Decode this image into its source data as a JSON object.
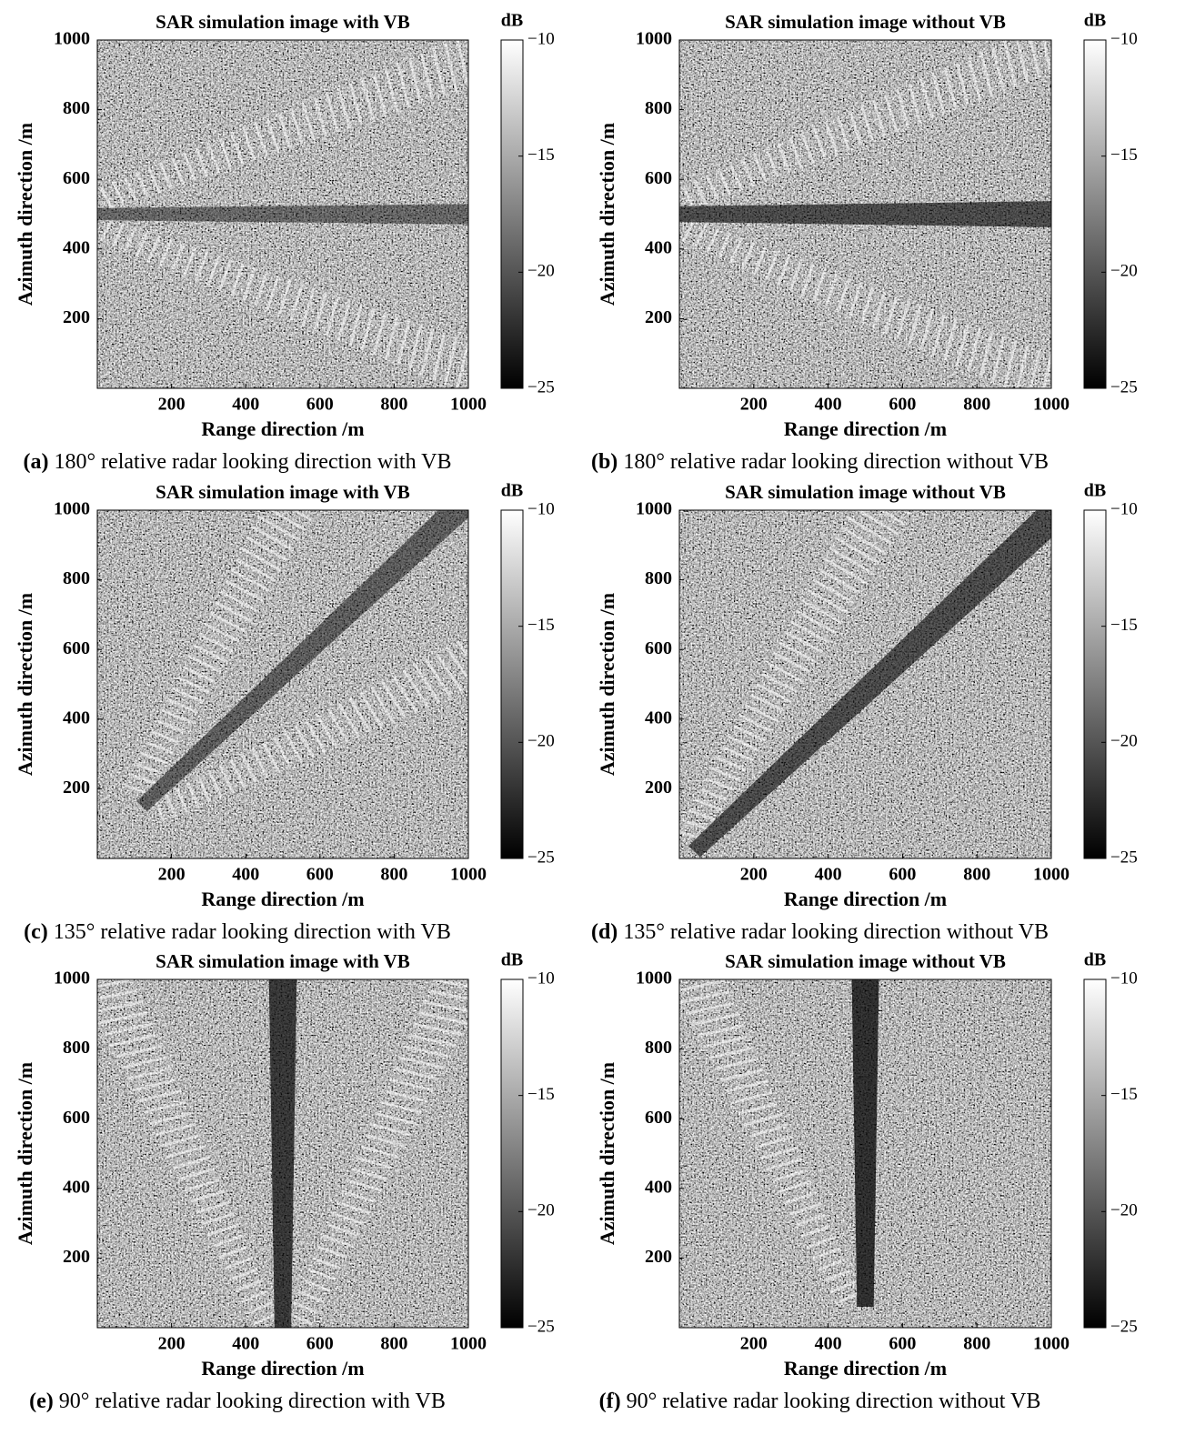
{
  "chart_data": [
    {
      "type": "heatmap",
      "title": "SAR simulation image with VB",
      "xlabel": "Range direction /m",
      "ylabel": "Azimuth direction /m",
      "caption_label": "(a)",
      "caption": "180° relative radar looking direction with VB",
      "colorbar_label": "dB",
      "colormap": "gray",
      "xlim": [
        0,
        1000
      ],
      "ylim": [
        0,
        1000
      ],
      "xticks": [
        200,
        400,
        600,
        800,
        1000
      ],
      "yticks": [
        200,
        400,
        600,
        800,
        1000
      ],
      "clim": [
        -25,
        -10
      ],
      "cticks": [
        {
          "value": -10,
          "label": "−10"
        },
        {
          "value": -15,
          "label": "−15"
        },
        {
          "value": -20,
          "label": "−20"
        },
        {
          "value": -25,
          "label": "−25"
        }
      ]
    },
    {
      "type": "heatmap",
      "title": "SAR simulation image without VB",
      "xlabel": "Range direction /m",
      "ylabel": "Azimuth direction /m",
      "caption_label": "(b)",
      "caption": "180° relative radar looking direction without VB",
      "colorbar_label": "dB",
      "colormap": "gray",
      "xlim": [
        0,
        1000
      ],
      "ylim": [
        0,
        1000
      ],
      "xticks": [
        200,
        400,
        600,
        800,
        1000
      ],
      "yticks": [
        200,
        400,
        600,
        800,
        1000
      ],
      "clim": [
        -25,
        -10
      ],
      "cticks": [
        {
          "value": -10,
          "label": "−10"
        },
        {
          "value": -15,
          "label": "−15"
        },
        {
          "value": -20,
          "label": "−20"
        },
        {
          "value": -25,
          "label": "−25"
        }
      ]
    },
    {
      "type": "heatmap",
      "title": "SAR simulation image with VB",
      "xlabel": "Range direction /m",
      "ylabel": "Azimuth direction /m",
      "caption_label": "(c)",
      "caption": "135° relative radar looking direction with VB",
      "colorbar_label": "dB",
      "colormap": "gray",
      "xlim": [
        0,
        1000
      ],
      "ylim": [
        0,
        1000
      ],
      "xticks": [
        200,
        400,
        600,
        800,
        1000
      ],
      "yticks": [
        200,
        400,
        600,
        800,
        1000
      ],
      "clim": [
        -25,
        -10
      ],
      "cticks": [
        {
          "value": -10,
          "label": "−10"
        },
        {
          "value": -15,
          "label": "−15"
        },
        {
          "value": -20,
          "label": "−20"
        },
        {
          "value": -25,
          "label": "−25"
        }
      ]
    },
    {
      "type": "heatmap",
      "title": "SAR simulation image without VB",
      "xlabel": "Range direction /m",
      "ylabel": "Azimuth direction /m",
      "caption_label": "(d)",
      "caption": "135° relative radar looking direction without VB",
      "colorbar_label": "dB",
      "colormap": "gray",
      "xlim": [
        0,
        1000
      ],
      "ylim": [
        0,
        1000
      ],
      "xticks": [
        200,
        400,
        600,
        800,
        1000
      ],
      "yticks": [
        200,
        400,
        600,
        800,
        1000
      ],
      "clim": [
        -25,
        -10
      ],
      "cticks": [
        {
          "value": -10,
          "label": "−10"
        },
        {
          "value": -15,
          "label": "−15"
        },
        {
          "value": -20,
          "label": "−20"
        },
        {
          "value": -25,
          "label": "−25"
        }
      ]
    },
    {
      "type": "heatmap",
      "title": "SAR simulation image with VB",
      "xlabel": "Range direction /m",
      "ylabel": "Azimuth direction /m",
      "caption_label": "(e)",
      "caption": "90° relative radar looking direction with VB",
      "colorbar_label": "dB",
      "colormap": "gray",
      "xlim": [
        0,
        1000
      ],
      "ylim": [
        0,
        1000
      ],
      "xticks": [
        200,
        400,
        600,
        800,
        1000
      ],
      "yticks": [
        200,
        400,
        600,
        800,
        1000
      ],
      "clim": [
        -25,
        -10
      ],
      "cticks": [
        {
          "value": -10,
          "label": "−10"
        },
        {
          "value": -15,
          "label": "−15"
        },
        {
          "value": -20,
          "label": "−20"
        },
        {
          "value": -25,
          "label": "−25"
        }
      ]
    },
    {
      "type": "heatmap",
      "title": "SAR simulation image without VB",
      "xlabel": "Range direction /m",
      "ylabel": "Azimuth direction /m",
      "caption_label": "(f)",
      "caption": "90° relative radar looking direction without VB",
      "colorbar_label": "dB",
      "colormap": "gray",
      "xlim": [
        0,
        1000
      ],
      "ylim": [
        0,
        1000
      ],
      "xticks": [
        200,
        400,
        600,
        800,
        1000
      ],
      "yticks": [
        200,
        400,
        600,
        800,
        1000
      ],
      "clim": [
        -25,
        -10
      ],
      "cticks": [
        {
          "value": -10,
          "label": "−10"
        },
        {
          "value": -15,
          "label": "−15"
        },
        {
          "value": -20,
          "label": "−20"
        },
        {
          "value": -25,
          "label": "−25"
        }
      ]
    }
  ]
}
